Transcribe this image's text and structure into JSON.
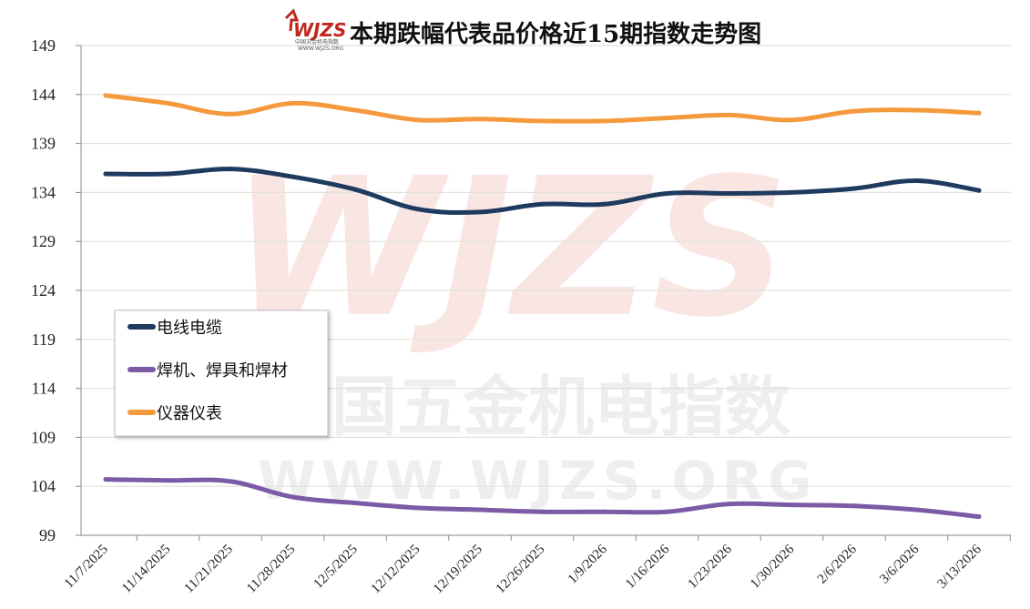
{
  "logo": {
    "text": "WJZS",
    "subtitle": "中国五金机电指数",
    "url": "WWW.WJZS.ORG"
  },
  "watermark": {
    "big": "WJZS",
    "cn": "中国五金机电指数",
    "url": "WWW.WJZS.ORG"
  },
  "chart_data": {
    "type": "line",
    "title": "本期跌幅代表品价格近15期指数走势图",
    "xlabel": "",
    "ylabel": "",
    "ylim": [
      99,
      149
    ],
    "yticks": [
      "149",
      "144",
      "139",
      "134",
      "129",
      "124",
      "119",
      "114",
      "109",
      "104",
      "99"
    ],
    "categories": [
      "11/7/2025",
      "11/14/2025",
      "11/21/2025",
      "11/28/2025",
      "12/5/2025",
      "12/12/2025",
      "12/19/2025",
      "12/26/2025",
      "1/9/2026",
      "1/16/2026",
      "1/23/2026",
      "1/30/2026",
      "2/6/2026",
      "3/6/2026",
      "3/13/2026"
    ],
    "series": [
      {
        "name": "电线电缆",
        "color": "#1f3a5f",
        "values": [
          135.9,
          135.9,
          136.4,
          135.6,
          134.3,
          132.3,
          132.0,
          132.8,
          132.8,
          133.9,
          133.9,
          134.0,
          134.4,
          135.2,
          134.2
        ]
      },
      {
        "name": "焊机、焊具和焊材",
        "color": "#7b5aa6",
        "values": [
          104.7,
          104.6,
          104.5,
          102.9,
          102.3,
          101.8,
          101.6,
          101.4,
          101.4,
          101.4,
          102.2,
          102.1,
          102.0,
          101.6,
          100.9
        ]
      },
      {
        "name": "仪器仪表",
        "color": "#f59a3c",
        "values": [
          143.9,
          143.1,
          142.0,
          143.1,
          142.4,
          141.4,
          141.5,
          141.3,
          141.3,
          141.6,
          141.9,
          141.4,
          142.3,
          142.4,
          142.1
        ]
      }
    ],
    "grid": true,
    "legend_position": "left-middle"
  }
}
